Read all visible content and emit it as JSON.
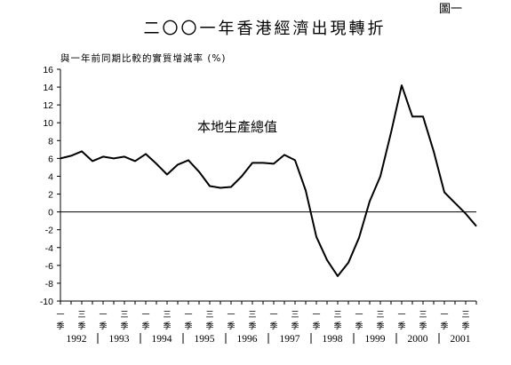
{
  "figure_label": "圖一",
  "chart_data": {
    "type": "line",
    "title": "二〇〇一年香港經濟出現轉折",
    "ylabel": "與一年前同期比較的實質增減率 (%)",
    "xlabel": "",
    "ylim": [
      -10,
      16
    ],
    "y_ticks": [
      -10,
      -8,
      -6,
      -4,
      -2,
      0,
      2,
      4,
      6,
      8,
      10,
      12,
      14,
      16
    ],
    "grid": false,
    "zero_line": true,
    "quarter_labels": [
      "一\n季",
      "三\n季"
    ],
    "years": [
      "1992",
      "1993",
      "1994",
      "1995",
      "1996",
      "1997",
      "1998",
      "1999",
      "2000",
      "2001"
    ],
    "annotation": "本地生產總值",
    "series": [
      {
        "values": [
          6.0,
          6.3,
          6.8,
          5.7,
          6.2,
          6.0,
          6.2,
          5.7,
          6.5,
          5.4,
          4.2,
          5.3,
          5.8,
          4.5,
          2.9,
          2.7,
          2.8,
          4.0,
          5.5,
          5.5,
          5.4,
          6.4,
          5.8,
          2.4,
          -2.8,
          -5.4,
          -7.2,
          -5.7,
          -2.9,
          1.2,
          4.0,
          8.9,
          14.2,
          10.7,
          10.7,
          6.8,
          2.2,
          1.0,
          -0.2,
          -1.6
        ],
        "color": "#000000"
      }
    ]
  }
}
